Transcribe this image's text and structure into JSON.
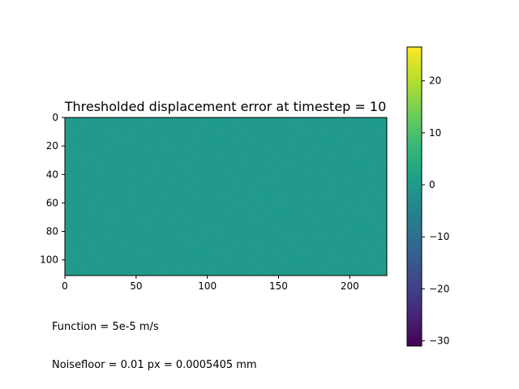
{
  "chart_data": {
    "type": "heatmap",
    "title": "Thresholded displacement error at timestep = 10",
    "xlabel": "",
    "ylabel": "",
    "xlim": [
      0,
      226
    ],
    "ylim": [
      111,
      0
    ],
    "x_ticks": [
      0,
      50,
      100,
      150,
      200
    ],
    "y_ticks": [
      0,
      20,
      40,
      60,
      80,
      100
    ],
    "colorbar": {
      "colormap": "viridis",
      "range": [
        -31,
        26.5
      ],
      "ticks": [
        20,
        10,
        0,
        -10,
        -20,
        -30
      ],
      "tick_labels": [
        "20",
        "10",
        "0",
        "−10",
        "−20",
        "−30"
      ]
    },
    "field_description_value": 0,
    "grid": false
  },
  "annotations": {
    "function": "Function = 5e-5 m/s",
    "noisefloor": "Noisefloor = 0.01 px = 0.0005405 mm"
  },
  "colors": {
    "viridis": [
      "#440154",
      "#482878",
      "#3e4989",
      "#31688e",
      "#26828e",
      "#1f9e89",
      "#35b779",
      "#6ece58",
      "#b5de2b",
      "#fde725"
    ]
  }
}
